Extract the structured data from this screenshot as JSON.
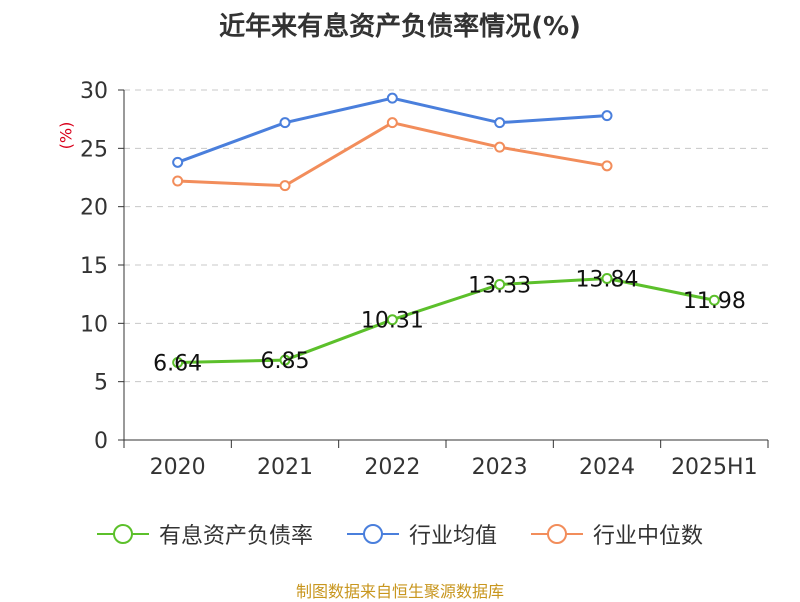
{
  "chart_data": {
    "type": "line",
    "title": "近年来有息资产负债率情况(%)",
    "ylabel": "(%)",
    "xlabel": "",
    "categories": [
      "2020",
      "2021",
      "2022",
      "2023",
      "2024",
      "2025H1"
    ],
    "ylim": [
      0,
      30
    ],
    "yticks": [
      0,
      5,
      10,
      15,
      20,
      25,
      30
    ],
    "grid": true,
    "legend_position": "bottom",
    "series": [
      {
        "name": "有息资产负债率",
        "color": "#5cc02b",
        "values": [
          6.64,
          6.85,
          10.31,
          13.33,
          13.84,
          11.98
        ],
        "labels": [
          "6.64",
          "6.85",
          "10.31",
          "13.33",
          "13.84",
          "11.98"
        ],
        "show_labels": true
      },
      {
        "name": "行业均值",
        "color": "#4a7fdc",
        "values": [
          23.8,
          27.2,
          29.3,
          27.2,
          27.8,
          null
        ],
        "show_labels": false
      },
      {
        "name": "行业中位数",
        "color": "#f28d5b",
        "values": [
          22.2,
          21.8,
          27.2,
          25.1,
          23.5,
          null
        ],
        "show_labels": false
      }
    ]
  },
  "source": "制图数据来自恒生聚源数据库"
}
